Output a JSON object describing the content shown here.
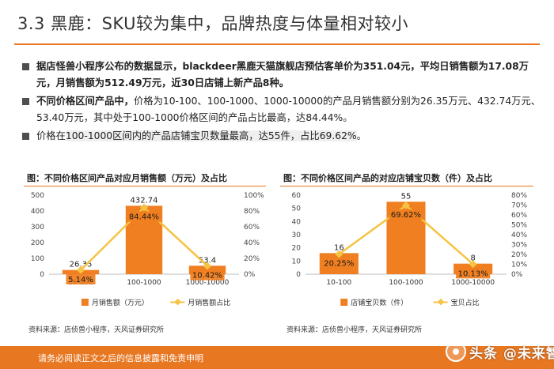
{
  "title": "3.3 黑鹿：SKU较为集中，品牌热度与体量相对较小",
  "bullets": [
    {
      "text": "据店怪兽小程序公布的数据显示，blackdeer黑鹿天猫旗舰店预估客单价为351.04元，平均日销售额为17.08万元，月销售额为512.49万元，近30日店铺上新产品8种。"
    },
    {
      "lead": "不同价格区间产品中，",
      "rest": "价格为10-100、100-1000、1000-10000的产品月销售额分别为26.35万元、432.74万元、53.40万元，其中处于100-1000价格区间的产品占比最高，达84.44%。"
    },
    {
      "pre": "价格在",
      "highlight": "100-1000区间内的产品店铺宝贝数量最高，达55件，占比69.62%",
      "post": "。"
    }
  ],
  "charts": {
    "left": {
      "title": "图：不同价格区间产品对应月销售额（万元）及占比"
    },
    "right": {
      "title": "图：不同价格区间产品的对应店铺宝贝数（件）及占比"
    }
  },
  "chart_data": [
    {
      "type": "bar",
      "title": "图：不同价格区间产品对应月销售额（万元）及占比",
      "categories": [
        "10-100",
        "100-1000",
        "1000-10000"
      ],
      "series": [
        {
          "name": "月销售额（万元）",
          "type": "bar",
          "axis": "left",
          "values": [
            26.35,
            432.74,
            53.4
          ],
          "labels": [
            "26.35",
            "432.74",
            "53.4"
          ]
        },
        {
          "name": "月销售额占比",
          "type": "line",
          "axis": "right",
          "values": [
            5.14,
            84.44,
            10.42
          ],
          "labels": [
            "5.14%",
            "84.44%",
            "10.42%"
          ]
        }
      ],
      "yleft": {
        "min": 0,
        "max": 500,
        "ticks": [
          "0",
          "100",
          "200",
          "300",
          "400",
          "500"
        ]
      },
      "yright": {
        "min": 0,
        "max": 100,
        "ticks": [
          "0%",
          "20%",
          "40%",
          "60%",
          "80%",
          "100%"
        ]
      },
      "source": "资料来源：店侦兽小程序，天风证券研究所"
    },
    {
      "type": "bar",
      "title": "图：不同价格区间产品的对应店铺宝贝数（件）及占比",
      "categories": [
        "10-100",
        "100-1000",
        "1000-10000"
      ],
      "series": [
        {
          "name": "店铺宝贝数（件）",
          "type": "bar",
          "axis": "left",
          "values": [
            16,
            55,
            8
          ],
          "labels": [
            "16",
            "55",
            "8"
          ]
        },
        {
          "name": "宝贝占比",
          "type": "line",
          "axis": "right",
          "values": [
            20.25,
            69.62,
            10.13
          ],
          "labels": [
            "20.25%",
            "69.62%",
            "10.13%"
          ]
        }
      ],
      "yleft": {
        "min": 0,
        "max": 60,
        "ticks": [
          "0",
          "10",
          "20",
          "30",
          "40",
          "50",
          "60"
        ]
      },
      "yright": {
        "min": 0,
        "max": 80,
        "ticks": [
          "0%",
          "10%",
          "20%",
          "30%",
          "40%",
          "50%",
          "60%",
          "70%",
          "80%"
        ]
      },
      "source": "资料来源：店侦兽小程序，天风证券研究所"
    }
  ],
  "colors": {
    "accent": "#e87722",
    "bar": "#f07f21",
    "line": "#f6c342",
    "label_box": "#f07f21"
  },
  "footer": {
    "text": "请务必阅读正文之后的信息披露和免责申明",
    "brand": "头条 @未来智库"
  }
}
